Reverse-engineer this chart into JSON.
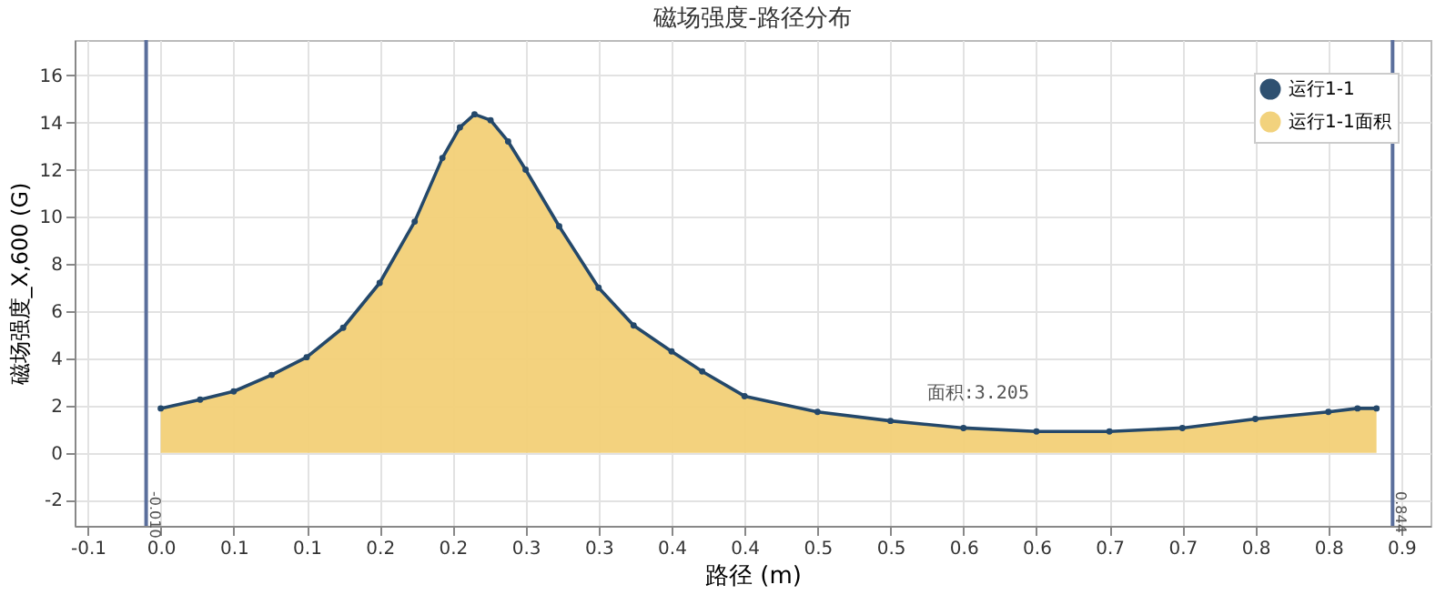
{
  "chart_data": {
    "type": "area",
    "title": "磁场强度-路径分布",
    "xlabel": "路径 (m)",
    "ylabel": "磁场强度_X,600 (G)",
    "x": [
      0.0,
      0.027,
      0.05,
      0.076,
      0.1,
      0.125,
      0.15,
      0.174,
      0.193,
      0.205,
      0.215,
      0.226,
      0.238,
      0.25,
      0.273,
      0.3,
      0.324,
      0.35,
      0.371,
      0.4,
      0.45,
      0.5,
      0.55,
      0.6,
      0.65,
      0.7,
      0.75,
      0.8,
      0.82,
      0.833
    ],
    "series": [
      {
        "name": "运行1-1",
        "type": "line",
        "marker": "circle",
        "color": "#24486a",
        "values": [
          1.88,
          2.25,
          2.6,
          3.3,
          4.05,
          5.3,
          7.2,
          9.8,
          12.5,
          13.8,
          14.35,
          14.1,
          13.2,
          12.0,
          9.6,
          7.0,
          5.4,
          4.3,
          3.45,
          2.4,
          1.73,
          1.35,
          1.05,
          0.9,
          0.9,
          1.05,
          1.43,
          1.73,
          1.88,
          1.88
        ]
      },
      {
        "name": "运行1-1面积",
        "color": "#f2d077",
        "values": [
          1.88,
          2.25,
          2.6,
          3.3,
          4.05,
          5.3,
          7.2,
          9.8,
          12.5,
          13.8,
          14.35,
          14.1,
          13.2,
          12.0,
          9.6,
          7.0,
          5.4,
          4.3,
          3.45,
          2.4,
          1.73,
          1.35,
          1.05,
          0.9,
          0.9,
          1.05,
          1.43,
          1.73,
          1.88,
          1.88
        ]
      }
    ],
    "xlim": [
      -0.059,
      0.87
    ],
    "xticks": [
      {
        "value": -0.05,
        "label": "-0.1"
      },
      {
        "value": 0,
        "label": "0.0"
      },
      {
        "value": 0.05,
        "label": "0.1"
      },
      {
        "value": 0.1,
        "label": "0.1"
      },
      {
        "value": 0.15,
        "label": "0.2"
      },
      {
        "value": 0.2,
        "label": "0.2"
      },
      {
        "value": 0.25,
        "label": "0.3"
      },
      {
        "value": 0.3,
        "label": "0.3"
      },
      {
        "value": 0.35,
        "label": "0.4"
      },
      {
        "value": 0.4,
        "label": "0.4"
      },
      {
        "value": 0.45,
        "label": "0.5"
      },
      {
        "value": 0.5,
        "label": "0.5"
      },
      {
        "value": 0.55,
        "label": "0.6"
      },
      {
        "value": 0.6,
        "label": "0.6"
      },
      {
        "value": 0.65,
        "label": "0.7"
      },
      {
        "value": 0.7,
        "label": "0.7"
      },
      {
        "value": 0.75,
        "label": "0.8"
      },
      {
        "value": 0.8,
        "label": "0.8"
      },
      {
        "value": 0.85,
        "label": "0.9"
      }
    ],
    "ylim": [
      -3.1,
      17.5
    ],
    "yticks": [
      -2,
      0,
      2,
      4,
      6,
      8,
      10,
      12,
      14,
      16
    ],
    "ref_lines": [
      {
        "axis": "x",
        "value": -0.01,
        "label": "-0.010",
        "color": "#5b6f9c"
      },
      {
        "axis": "x",
        "value": 0.844,
        "label": "0.844",
        "color": "#5b6f9c"
      }
    ],
    "annotations": [
      {
        "text": "面积:3.205",
        "x": 0.56,
        "y": 1.0
      }
    ],
    "grid": true,
    "legend": "top right"
  }
}
